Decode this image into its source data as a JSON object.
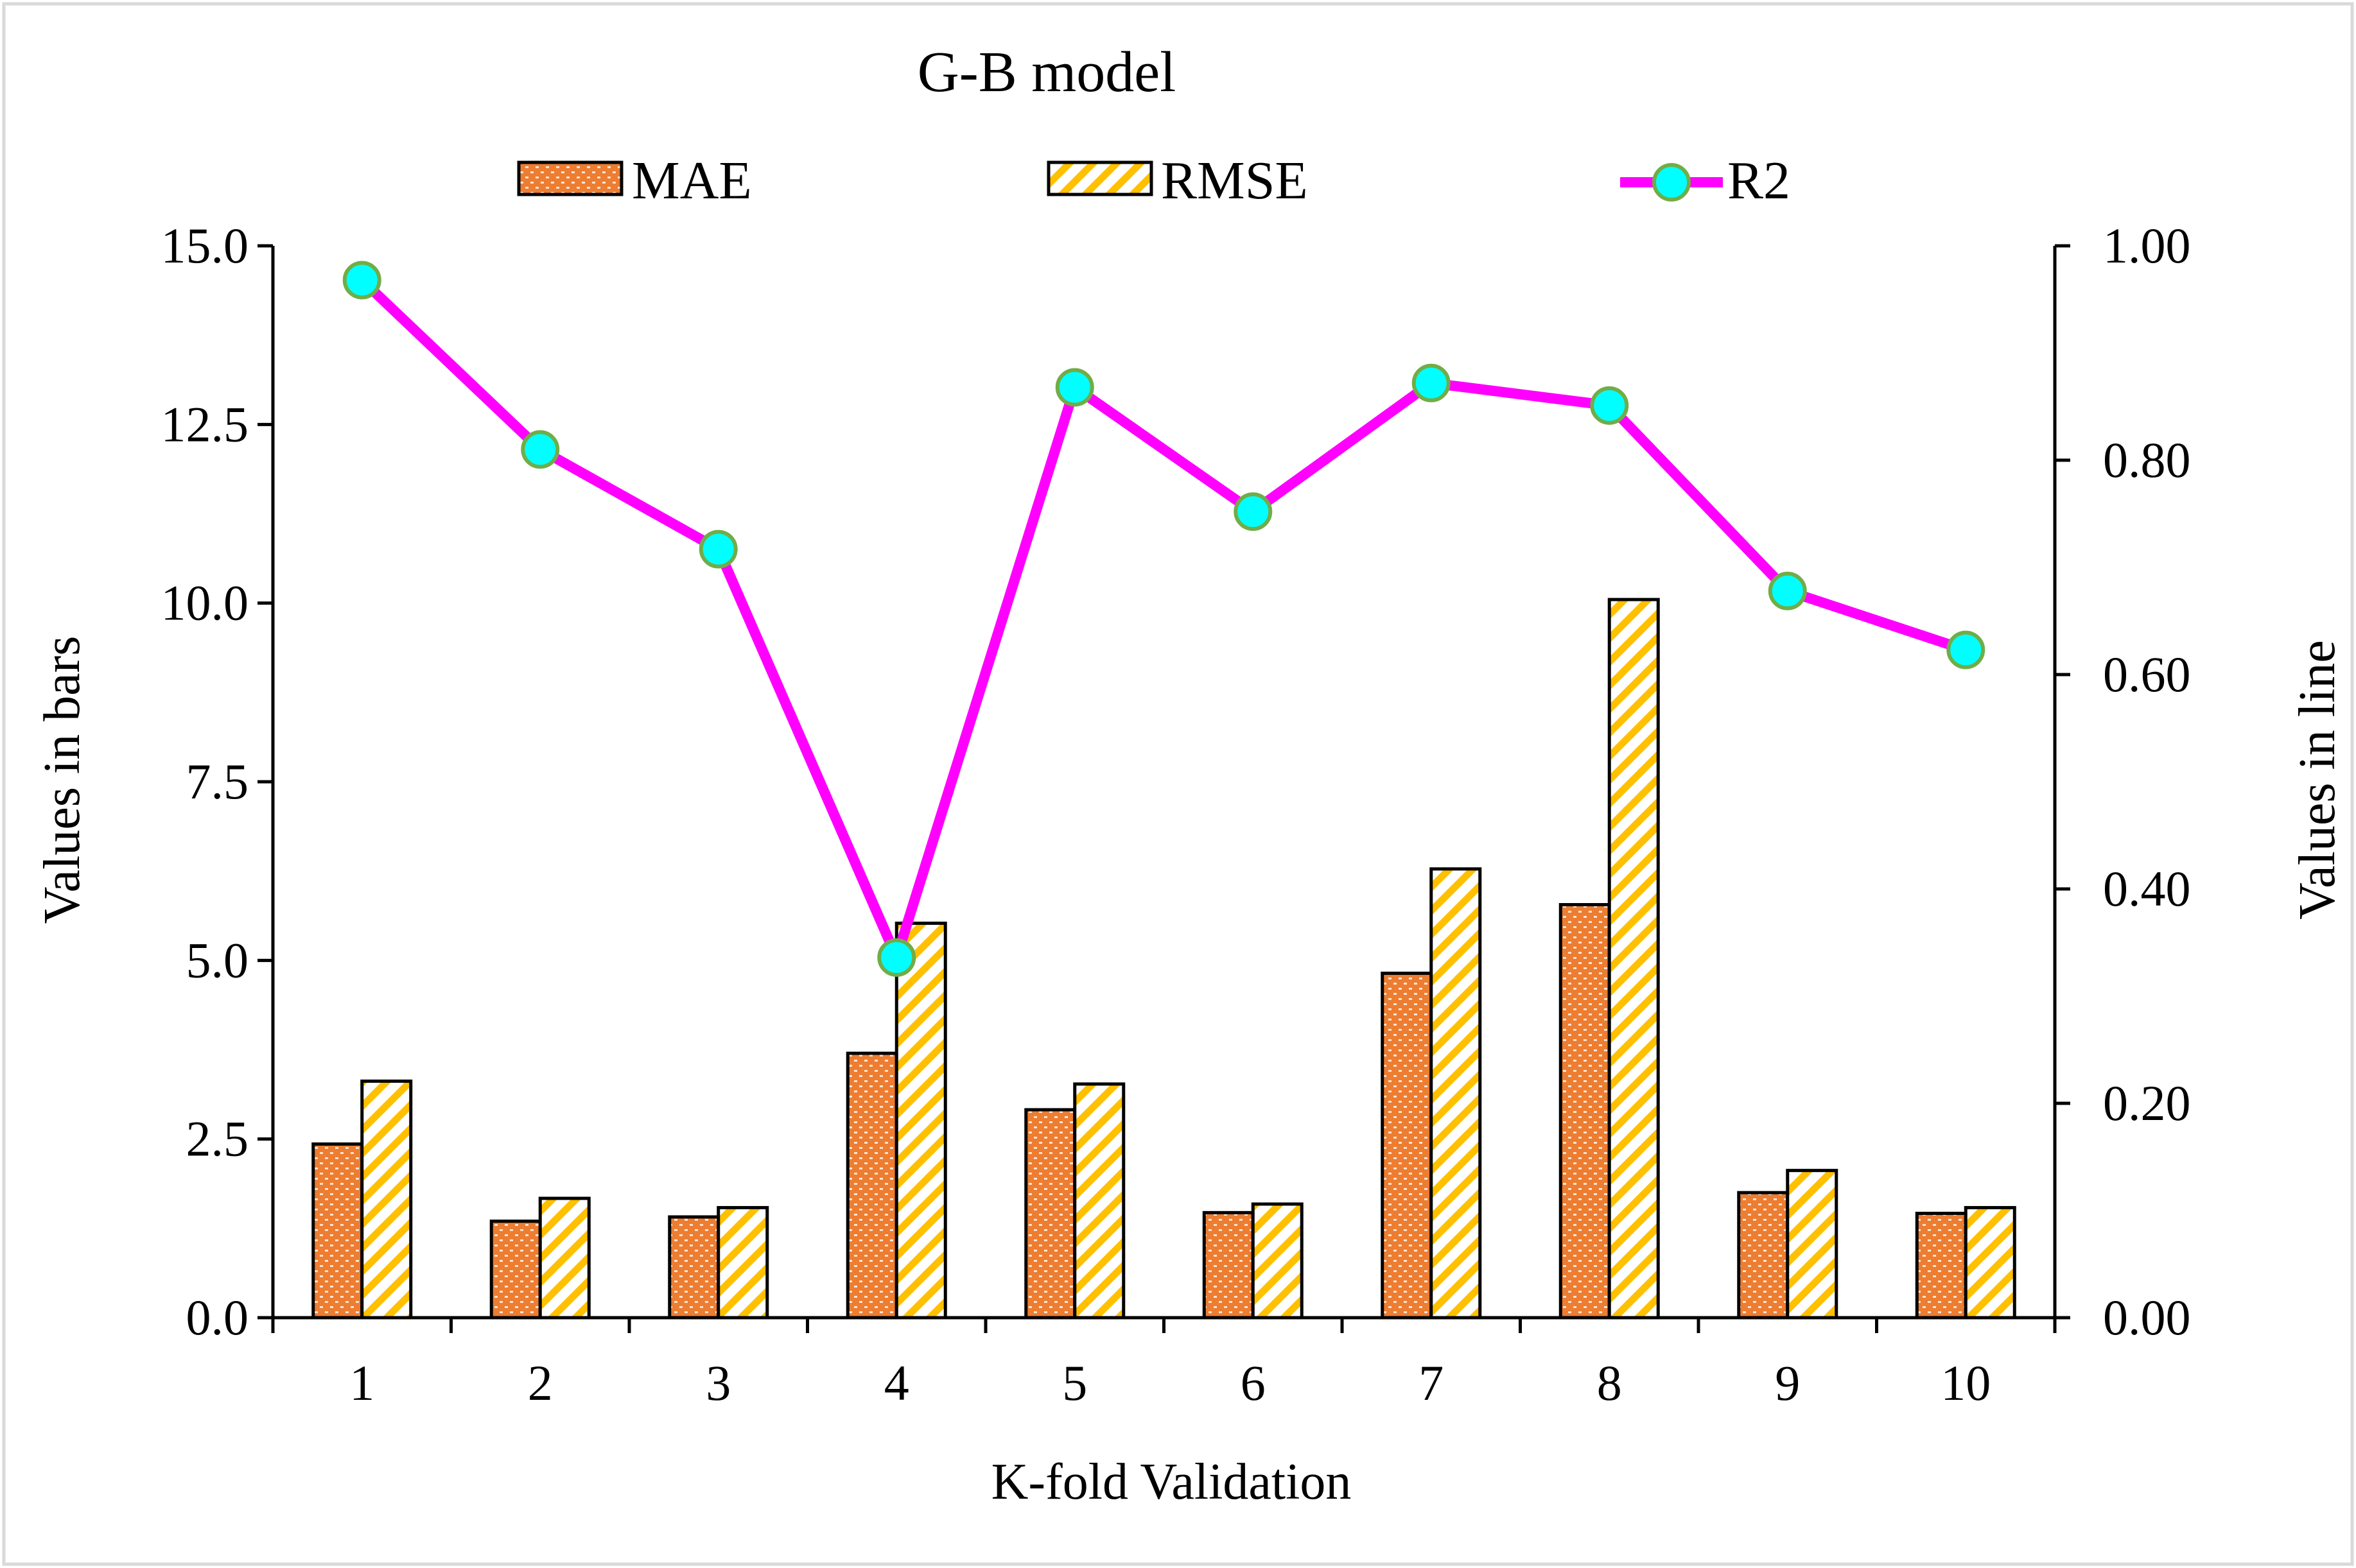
{
  "colors": {
    "mae_fill": "#ED7D31",
    "mae_dots": "#FBE5D6",
    "rmse_fill": "#FFC000",
    "r2_line": "#FF00FF",
    "r2_marker": "#00FFFF",
    "r2_marker_edge": "#70AD47",
    "frame": "#D9D9D9"
  },
  "chart_data": {
    "type": "bar",
    "title": "G-B model",
    "xlabel": "K-fold Validation",
    "ylabel": "Values in bars",
    "y2label": "Values in line",
    "categories": [
      "1",
      "2",
      "3",
      "4",
      "5",
      "6",
      "7",
      "8",
      "9",
      "10"
    ],
    "ylim": [
      0,
      15
    ],
    "yticks": [
      0,
      2.5,
      5,
      7.5,
      10,
      12.5,
      15
    ],
    "ytick_labels": [
      "0.0",
      "2.5",
      "5.0",
      "7.5",
      "10.0",
      "12.5",
      "15.0"
    ],
    "y2lim": [
      0,
      1
    ],
    "y2ticks": [
      0,
      0.2,
      0.4,
      0.6,
      0.8,
      1.0
    ],
    "y2tick_labels": [
      "0.00",
      "0.20",
      "0.40",
      "0.60",
      "0.80",
      "1.00"
    ],
    "legend_position": "top-center",
    "grid": false,
    "series": [
      {
        "name": "MAE",
        "type": "bar",
        "axis": "left",
        "values": [
          2.43,
          1.35,
          1.41,
          3.7,
          2.91,
          1.47,
          4.82,
          5.78,
          1.75,
          1.46
        ]
      },
      {
        "name": "RMSE",
        "type": "bar",
        "axis": "left",
        "values": [
          3.31,
          1.67,
          1.54,
          5.52,
          3.27,
          1.59,
          6.28,
          10.05,
          2.06,
          1.54
        ]
      },
      {
        "name": "R2",
        "type": "line",
        "axis": "right",
        "values": [
          0.968,
          0.81,
          0.717,
          0.336,
          0.868,
          0.752,
          0.872,
          0.851,
          0.678,
          0.623
        ]
      }
    ]
  }
}
